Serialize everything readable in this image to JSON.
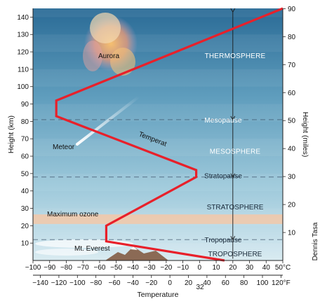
{
  "chart_data": {
    "type": "line",
    "left_axis": {
      "label": "Height (km)",
      "ticks": [
        10,
        20,
        30,
        40,
        50,
        60,
        70,
        80,
        90,
        100,
        110,
        120,
        130,
        140
      ],
      "range": [
        0,
        145
      ]
    },
    "right_axis": {
      "label": "Height (miles)",
      "ticks": [
        10,
        20,
        30,
        40,
        50,
        60,
        70,
        80,
        90
      ]
    },
    "x_axis_c": {
      "ticks": [
        "-100",
        "-90",
        "-80",
        "-70",
        "-60",
        "-50",
        "-40",
        "-30",
        "-20",
        "-10",
        "0",
        "10",
        "20",
        "30",
        "40",
        "50°C"
      ],
      "range": [
        -100,
        50
      ]
    },
    "x_axis_f": {
      "ticks": [
        "-140",
        "-120",
        "-100",
        "-80",
        "-60",
        "-40",
        "-20",
        "0",
        "20",
        "40",
        "60",
        "80",
        "100",
        "120°F"
      ],
      "marker": "32"
    },
    "xlabel": "Temperature",
    "series": [
      {
        "name": "Temperature",
        "points": [
          [
            15,
            0
          ],
          [
            -56,
            11
          ],
          [
            -56,
            20
          ],
          [
            -2,
            48
          ],
          [
            -2,
            52
          ],
          [
            -86,
            83
          ],
          [
            -86,
            92
          ],
          [
            50,
            145
          ]
        ]
      }
    ],
    "curve_label": "Temperat",
    "layers": [
      {
        "label": "THERMOSPHERE",
        "height_km": 118
      },
      {
        "label": "Mesopause",
        "height_km": 81
      },
      {
        "label": "MESOSPHERE",
        "height_km": 63
      },
      {
        "label": "Stratopause",
        "height_km": 49
      },
      {
        "label": "STRATOSPHERE",
        "height_km": 31
      },
      {
        "label": "Tropopause",
        "height_km": 12
      },
      {
        "label": "TROPOSPHERE",
        "height_km": 4
      }
    ],
    "annotations": [
      "Aurora",
      "Meteor",
      "Maximum ozone",
      "Mt. Everest"
    ],
    "colors": {
      "curve": "#e8202a",
      "sky_top": "#2b6e98",
      "sky_bottom": "#d9ebf1",
      "ozone": "#f3c8a8"
    }
  },
  "credit": "Dennis Tasa"
}
